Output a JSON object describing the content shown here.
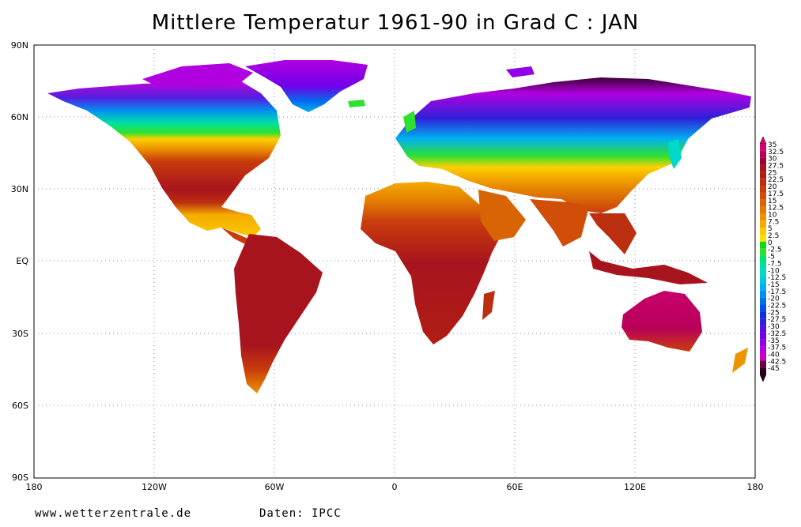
{
  "title": "Mittlere Temperatur 1961-90 in Grad C : JAN",
  "footer": {
    "website": "www.wetterzentrale.de",
    "source": "Daten: IPCC"
  },
  "axes": {
    "lat_labels": [
      "90N",
      "60N",
      "30N",
      "EQ",
      "30S",
      "60S",
      "90S"
    ],
    "lon_labels": [
      "180",
      "120W",
      "60W",
      "0",
      "60E",
      "120E",
      "180"
    ]
  },
  "colorbar": {
    "labels": [
      "35",
      "32.5",
      "30",
      "27.5",
      "25",
      "22.5",
      "20",
      "17.5",
      "15",
      "12.5",
      "10",
      "7.5",
      "5",
      "2.5",
      "0",
      "-2.5",
      "-5",
      "-7.5",
      "-10",
      "-12.5",
      "-15",
      "-17.5",
      "-20",
      "-22.5",
      "-25",
      "-27.5",
      "-30",
      "-32.5",
      "-35",
      "-37.5",
      "-40",
      "-42.5",
      "-45"
    ],
    "colors": [
      "#d6006e",
      "#b8005a",
      "#9c0030",
      "#a8141e",
      "#b01e14",
      "#bc2e10",
      "#c83c0c",
      "#d04e08",
      "#d86404",
      "#e47c00",
      "#ec9400",
      "#f4ac00",
      "#fcc800",
      "#fce000",
      "#10d810",
      "#30e030",
      "#00e070",
      "#00e0a0",
      "#00d8c8",
      "#00c8e0",
      "#00b0f0",
      "#0090f0",
      "#0070f0",
      "#0050e8",
      "#1030e0",
      "#3020d8",
      "#5010e0",
      "#7000e8",
      "#9000e8",
      "#b000e0",
      "#c800c8",
      "#6a0040",
      "#2a0020"
    ]
  }
}
